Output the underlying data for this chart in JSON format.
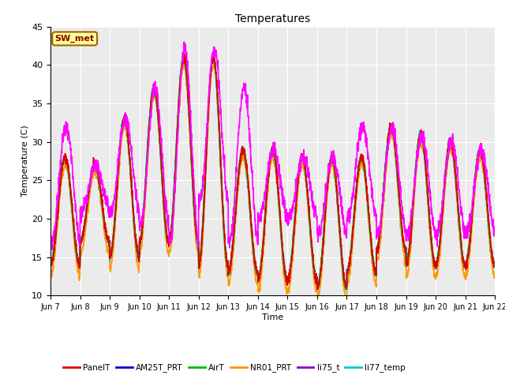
{
  "title": "Temperatures",
  "xlabel": "Time",
  "ylabel": "Temperature (C)",
  "ylim": [
    10,
    45
  ],
  "plot_bg": "#ebebeb",
  "grid_color": "white",
  "series": {
    "PanelT": {
      "color": "#dd0000",
      "lw": 1.2
    },
    "AM25T_PRT": {
      "color": "#0000cc",
      "lw": 1.2
    },
    "AirT": {
      "color": "#00bb00",
      "lw": 1.2
    },
    "NR01_PRT": {
      "color": "#ff9900",
      "lw": 1.2
    },
    "li75_t": {
      "color": "#8800cc",
      "lw": 1.2
    },
    "li77_temp": {
      "color": "#00cccc",
      "lw": 1.2
    },
    "sonicT": {
      "color": "#ff00ff",
      "lw": 1.2
    }
  },
  "xtick_labels": [
    "Jun 7",
    "Jun 8",
    "Jun 9",
    "Jun 10",
    "Jun 11",
    "Jun 12",
    "Jun 13",
    "Jun 14",
    "Jun 15",
    "Jun 16",
    "Jun 17",
    "Jun 18",
    "Jun 19",
    "Jun 20",
    "Jun 21",
    "Jun 22"
  ],
  "ytick_labels": [
    "10",
    "15",
    "20",
    "25",
    "30",
    "35",
    "40",
    "45"
  ],
  "annotation_text": "SW_met",
  "annotation_bg": "#ffff99",
  "annotation_border": "#996600",
  "day_mins": [
    14,
    17,
    15,
    17,
    17,
    14,
    13,
    12,
    12,
    11,
    13,
    16,
    14,
    14,
    14
  ],
  "day_maxs": [
    28,
    27,
    33,
    37,
    41,
    41,
    29,
    29,
    28,
    28,
    28,
    32,
    31,
    30,
    29
  ],
  "sonic_day_maxs": [
    32,
    27,
    33,
    37,
    42,
    42,
    37,
    29,
    28,
    28,
    32,
    32,
    31,
    30,
    29
  ],
  "sonic_day_mins": [
    17,
    21,
    21,
    19,
    17,
    22,
    17,
    20,
    20,
    18,
    20,
    18,
    18,
    18,
    18
  ]
}
